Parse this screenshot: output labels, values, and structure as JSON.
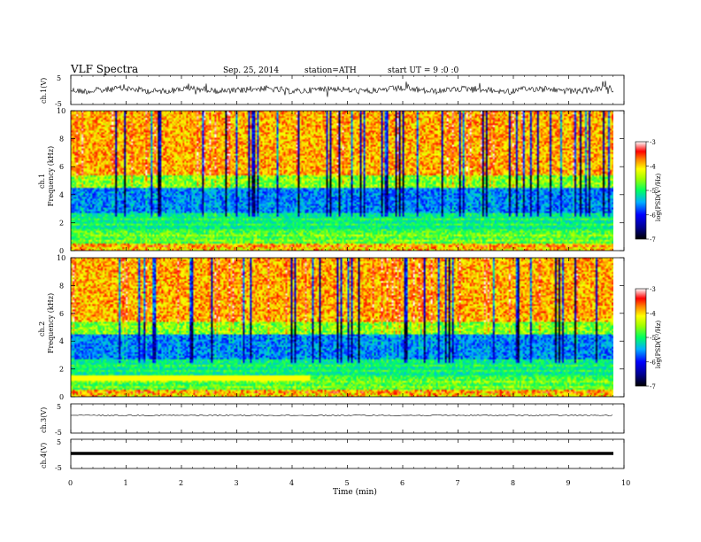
{
  "header": {
    "title": "VLF  Spectra",
    "date": "Sep. 25, 2014",
    "station": "station=ATH",
    "start_ut": "start  UT  =  9  :0  :0"
  },
  "chart_data": [
    {
      "type": "line",
      "name": "ch1-waveform",
      "ylabel": "ch.1(V)",
      "ylim": [
        -5,
        5
      ],
      "yticks": [
        "5",
        "-5"
      ],
      "xlim": [
        0,
        10
      ],
      "note_visible": "noisy waveform, amplitude roughly -1 to 1 V"
    },
    {
      "type": "heatmap",
      "name": "ch1-spectrogram",
      "ylabel": "ch.1\nFrequency  (kHz)",
      "ylabel_line1": "ch.1",
      "ylabel_line2": "Frequency  (kHz)",
      "ylim": [
        0,
        10
      ],
      "yticks": [
        "0",
        "2",
        "4",
        "6",
        "8",
        "10"
      ],
      "xlim": [
        0,
        10
      ],
      "colorbar": {
        "label": "log(PSD(V²/Hz)",
        "range": [
          -7,
          -3
        ],
        "ticks": [
          "-3",
          "-4",
          "-5",
          "-6",
          "-7"
        ]
      }
    },
    {
      "type": "heatmap",
      "name": "ch2-spectrogram",
      "ylabel_line1": "ch.2",
      "ylabel_line2": "Frequency  (kHz)",
      "ylim": [
        0,
        10
      ],
      "yticks": [
        "0",
        "2",
        "4",
        "6",
        "8",
        "10"
      ],
      "xlim": [
        0,
        10
      ],
      "colorbar": {
        "label": "log(PSD(V²/Hz)",
        "range": [
          -7,
          -3
        ],
        "ticks": [
          "-3",
          "-4",
          "-5",
          "-6",
          "-7"
        ]
      }
    },
    {
      "type": "line",
      "name": "ch3-waveform",
      "ylabel": "ch.3(V)",
      "ylim": [
        -5,
        5
      ],
      "yticks": [
        "5",
        "-5"
      ],
      "value_approx": 0
    },
    {
      "type": "line",
      "name": "ch4-waveform",
      "ylabel": "ch.4(V)",
      "ylim": [
        -5,
        5
      ],
      "yticks": [
        "5",
        "-5"
      ],
      "value_approx": 0
    }
  ],
  "xaxis": {
    "label": "Time  (min)",
    "ticks": [
      "0",
      "1",
      "2",
      "3",
      "4",
      "5",
      "6",
      "7",
      "8",
      "9",
      "10"
    ],
    "range": [
      0,
      10
    ]
  }
}
